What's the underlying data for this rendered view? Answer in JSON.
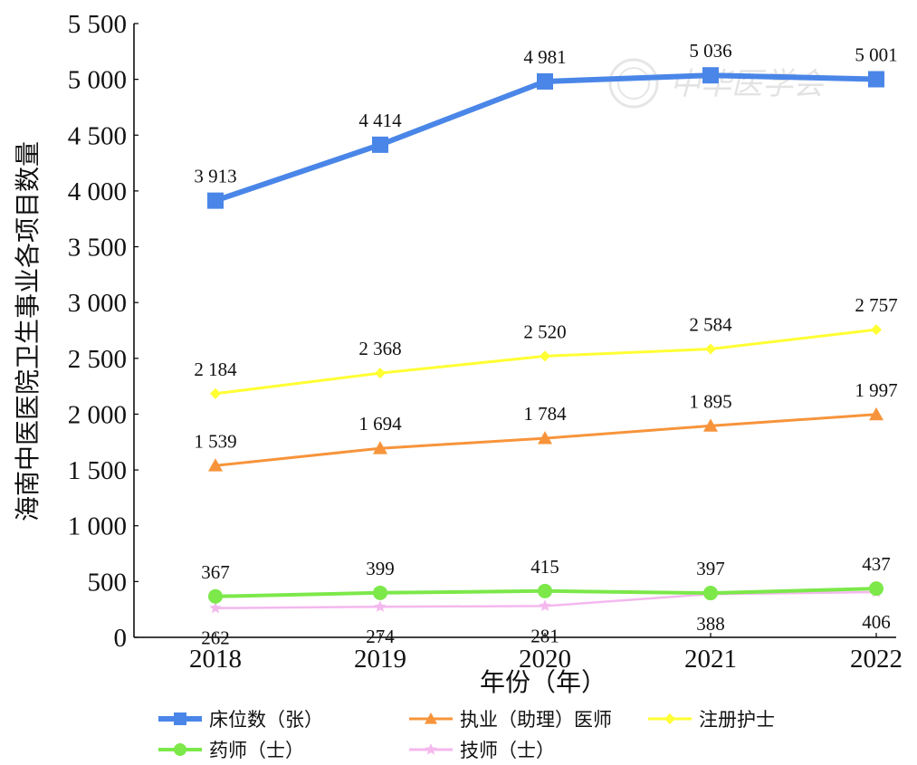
{
  "watermark": "中华医学会",
  "chart_data": {
    "type": "line",
    "title": "",
    "xlabel": "年份（年）",
    "ylabel": "海南中医医院卫生事业各项目数量",
    "categories": [
      "2018",
      "2019",
      "2020",
      "2021",
      "2022"
    ],
    "ylim": [
      0,
      5500
    ],
    "yticks": [
      0,
      500,
      1000,
      1500,
      2000,
      2500,
      3000,
      3500,
      4000,
      4500,
      5000,
      5500
    ],
    "ytick_labels": [
      "0",
      "500",
      "1 000",
      "1 500",
      "2 000",
      "2 500",
      "3 000",
      "3 500",
      "4 000",
      "4 500",
      "5 000",
      "5 500"
    ],
    "grid": false,
    "legend_position": "bottom",
    "series": [
      {
        "name": "床位数（张）",
        "values": [
          3913,
          4414,
          4981,
          5036,
          5001
        ],
        "labels": [
          "3 913",
          "4 414",
          "4 981",
          "5 036",
          "5 001"
        ],
        "color": "#4a86e8",
        "marker": "square",
        "label_pos": "above"
      },
      {
        "name": "执业（助理）医师",
        "values": [
          1539,
          1694,
          1784,
          1895,
          1997
        ],
        "labels": [
          "1 539",
          "1 694",
          "1 784",
          "1 895",
          "1 997"
        ],
        "color": "#f7943b",
        "marker": "triangle",
        "label_pos": "above"
      },
      {
        "name": "注册护士",
        "values": [
          2184,
          2368,
          2520,
          2584,
          2757
        ],
        "labels": [
          "2 184",
          "2 368",
          "2 520",
          "2 584",
          "2 757"
        ],
        "color": "#ffff33",
        "marker": "diamond",
        "label_pos": "above"
      },
      {
        "name": "药师（士）",
        "values": [
          367,
          399,
          415,
          397,
          437
        ],
        "labels": [
          "367",
          "399",
          "415",
          "397",
          "437"
        ],
        "color": "#7ce84a",
        "marker": "circle",
        "label_pos": "above"
      },
      {
        "name": "技师（士）",
        "values": [
          262,
          274,
          281,
          388,
          406
        ],
        "labels": [
          "262",
          "274",
          "281",
          "388",
          "406"
        ],
        "color": "#f4b8ee",
        "marker": "star",
        "label_pos": "below"
      }
    ]
  }
}
